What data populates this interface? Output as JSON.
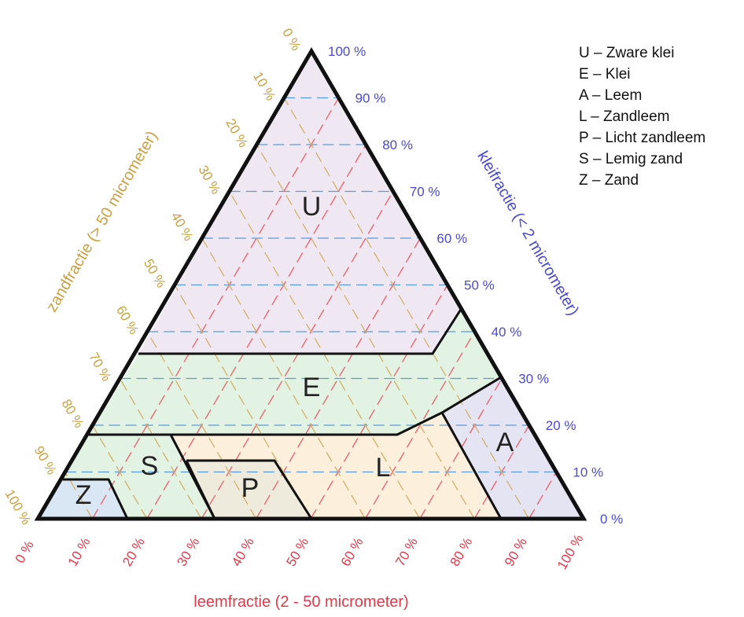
{
  "legend": [
    "U – Zware klei",
    "E – Klei",
    "A – Leem",
    "L – Zandleem",
    "P – Licht zandleem",
    "S – Lemig zand",
    "Z – Zand"
  ],
  "axes": {
    "sand": {
      "title": "zandfractie (> 50 micrometer)",
      "ticks": [
        "0 %",
        "10 %",
        "20 %",
        "30 %",
        "40 %",
        "50 %",
        "60 %",
        "70 %",
        "80 %",
        "90 %",
        "100 %"
      ]
    },
    "clay": {
      "title": "kleifractie (< 2 micrometer)",
      "ticks": [
        "0 %",
        "10 %",
        "20 %",
        "30 %",
        "40 %",
        "50 %",
        "60 %",
        "70 %",
        "80 %",
        "90 %",
        "100 %"
      ]
    },
    "silt": {
      "title": "leemfractie (2 - 50 micrometer)",
      "ticks": [
        "0 %",
        "10 %",
        "20 %",
        "30 %",
        "40 %",
        "50 %",
        "60 %",
        "70 %",
        "80 %",
        "90 %",
        "100 %"
      ]
    }
  },
  "regions": [
    {
      "id": "U",
      "label": "U",
      "name": "Zware klei",
      "color": "#efe8f2"
    },
    {
      "id": "E",
      "label": "E",
      "name": "Klei",
      "color": "#e2f2e3"
    },
    {
      "id": "A",
      "label": "A",
      "name": "Leem",
      "color": "#e4e4f2"
    },
    {
      "id": "L",
      "label": "L",
      "name": "Zandleem",
      "color": "#fcefdc"
    },
    {
      "id": "P",
      "label": "P",
      "name": "Licht zandleem",
      "color": "#eeebdc"
    },
    {
      "id": "S",
      "label": "S",
      "name": "Lemig zand",
      "color": "#e2f2e3"
    },
    {
      "id": "Z",
      "label": "Z",
      "name": "Zand",
      "color": "#d9e7f4"
    }
  ],
  "colors": {
    "sand": "#c8a040",
    "clay": "#4a4ad0",
    "silt": "#e03a4a",
    "outline": "#111111"
  }
}
